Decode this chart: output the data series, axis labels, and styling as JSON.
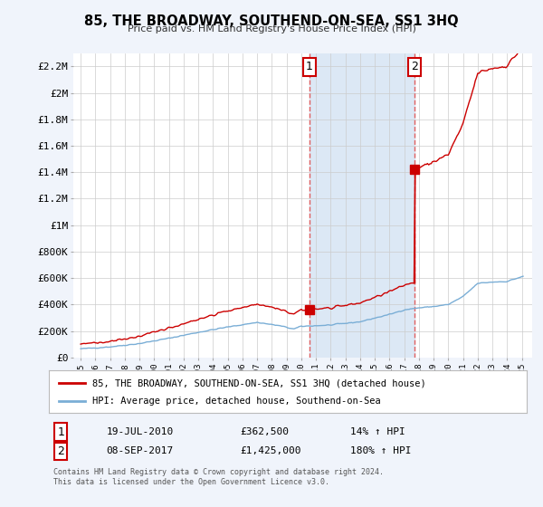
{
  "title": "85, THE BROADWAY, SOUTHEND-ON-SEA, SS1 3HQ",
  "subtitle": "Price paid vs. HM Land Registry's House Price Index (HPI)",
  "legend_line1": "85, THE BROADWAY, SOUTHEND-ON-SEA, SS1 3HQ (detached house)",
  "legend_line2": "HPI: Average price, detached house, Southend-on-Sea",
  "footnote": "Contains HM Land Registry data © Crown copyright and database right 2024.\nThis data is licensed under the Open Government Licence v3.0.",
  "transaction1_label": "1",
  "transaction1_date": "19-JUL-2010",
  "transaction1_price": "£362,500",
  "transaction1_hpi": "14% ↑ HPI",
  "transaction1_x": 2010.54,
  "transaction1_y": 362500,
  "transaction2_label": "2",
  "transaction2_date": "08-SEP-2017",
  "transaction2_price": "£1,425,000",
  "transaction2_hpi": "180% ↑ HPI",
  "transaction2_x": 2017.69,
  "transaction2_y": 1425000,
  "hpi_color": "#7aaed6",
  "price_color": "#cc0000",
  "vline_color": "#e06060",
  "shade_color": "#dce8f5",
  "background_color": "#f0f4fb",
  "plot_bg": "#ffffff",
  "ylim": [
    0,
    2300000
  ],
  "yticks": [
    0,
    200000,
    400000,
    600000,
    800000,
    1000000,
    1200000,
    1400000,
    1600000,
    1800000,
    2000000,
    2200000
  ],
  "ytick_labels": [
    "£0",
    "£200K",
    "£400K",
    "£600K",
    "£800K",
    "£1M",
    "£1.2M",
    "£1.4M",
    "£1.6M",
    "£1.8M",
    "£2M",
    "£2.2M"
  ],
  "xlim_start": 1994.5,
  "xlim_end": 2025.7
}
